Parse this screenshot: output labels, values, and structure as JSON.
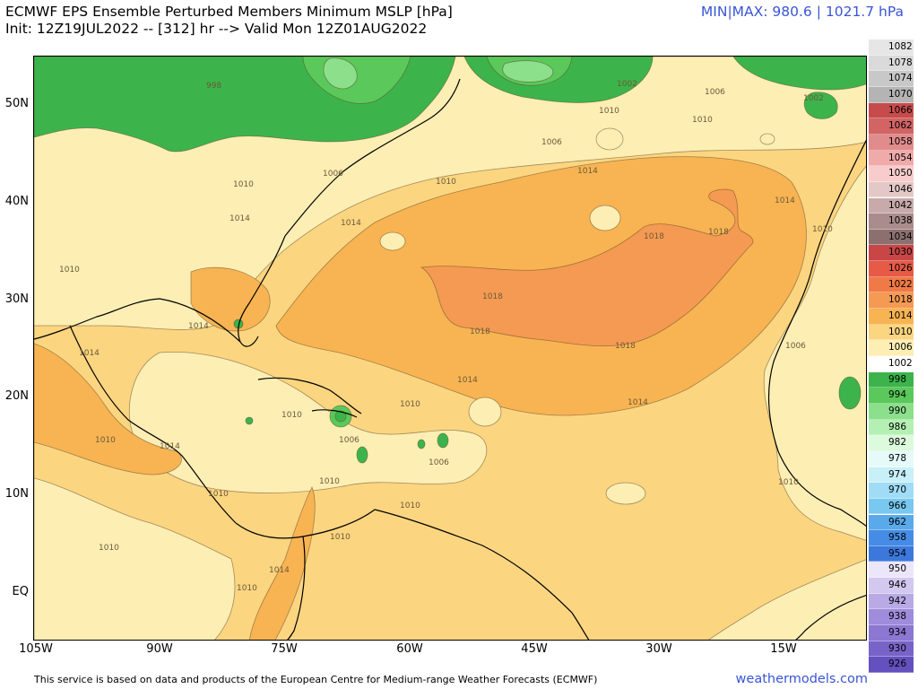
{
  "header": {
    "title_line1": "ECMWF EPS Ensemble Perturbed Members Minimum MSLP [hPa]",
    "title_line2": "Init: 12Z19JUL2022 -- [312] hr --> Valid Mon 12Z01AUG2022",
    "minmax": "MIN|MAX: 980.6 | 1021.7 hPa"
  },
  "axes": {
    "lat_ticks": [
      "50N",
      "40N",
      "30N",
      "20N",
      "10N",
      "EQ"
    ],
    "lon_ticks": [
      "105W",
      "90W",
      "75W",
      "60W",
      "45W",
      "30W",
      "15W"
    ]
  },
  "legend": {
    "items": [
      {
        "label": "1082",
        "color": "#e6e6e6"
      },
      {
        "label": "1078",
        "color": "#dadada"
      },
      {
        "label": "1074",
        "color": "#c8c8c8"
      },
      {
        "label": "1070",
        "color": "#b4b4b4"
      },
      {
        "label": "1066",
        "color": "#c84b4b"
      },
      {
        "label": "1062",
        "color": "#d26464"
      },
      {
        "label": "1058",
        "color": "#e18c8c"
      },
      {
        "label": "1054",
        "color": "#f0aaaa"
      },
      {
        "label": "1050",
        "color": "#f8cccc"
      },
      {
        "label": "1046",
        "color": "#e4c8c8"
      },
      {
        "label": "1042",
        "color": "#c8aaaa"
      },
      {
        "label": "1038",
        "color": "#aa8c8c"
      },
      {
        "label": "1034",
        "color": "#8c7070"
      },
      {
        "label": "1030",
        "color": "#c84646"
      },
      {
        "label": "1026",
        "color": "#e65a46"
      },
      {
        "label": "1022",
        "color": "#f07a46"
      },
      {
        "label": "1018",
        "color": "#f59a52"
      },
      {
        "label": "1014",
        "color": "#f8b452"
      },
      {
        "label": "1010",
        "color": "#fbd580"
      },
      {
        "label": "1006",
        "color": "#fdeeb4"
      },
      {
        "label": "1002",
        "color": "#ffffff"
      },
      {
        "label": "998",
        "color": "#3cb44b"
      },
      {
        "label": "994",
        "color": "#5ac85a"
      },
      {
        "label": "990",
        "color": "#8ce08c"
      },
      {
        "label": "986",
        "color": "#b4f0b4"
      },
      {
        "label": "982",
        "color": "#dcfadc"
      },
      {
        "label": "978",
        "color": "#e6fafa"
      },
      {
        "label": "974",
        "color": "#c8f0f8"
      },
      {
        "label": "970",
        "color": "#a0dcf5"
      },
      {
        "label": "966",
        "color": "#78c8f0"
      },
      {
        "label": "962",
        "color": "#5aaaeb"
      },
      {
        "label": "958",
        "color": "#468ce6"
      },
      {
        "label": "954",
        "color": "#3c78dc"
      },
      {
        "label": "950",
        "color": "#ebe6fa"
      },
      {
        "label": "946",
        "color": "#d2c8f0"
      },
      {
        "label": "942",
        "color": "#b9aae6"
      },
      {
        "label": "938",
        "color": "#a08cdc"
      },
      {
        "label": "934",
        "color": "#8c78d2"
      },
      {
        "label": "930",
        "color": "#7864c8"
      },
      {
        "label": "926",
        "color": "#6450be"
      }
    ]
  },
  "isobar_labels": {
    "l1006": "1006",
    "l1010": "1010",
    "l1014": "1014",
    "l1018": "1018",
    "l1002": "1002",
    "l998": "998"
  },
  "fill_colors": {
    "land": "#fdeeb4",
    "ocean_1010": "#fbd580",
    "ocean_1014": "#f8b452",
    "high_1018": "#f59a52",
    "low_998": "#3cb44b",
    "low_994": "#5ac85a",
    "low_990": "#8ce08c",
    "low_1002": "#f0f8e0"
  },
  "footer": {
    "credit": "This service is based on data and products of the European Centre for Medium-range Weather Forecasts (ECMWF)",
    "brand": "weathermodels.com"
  }
}
